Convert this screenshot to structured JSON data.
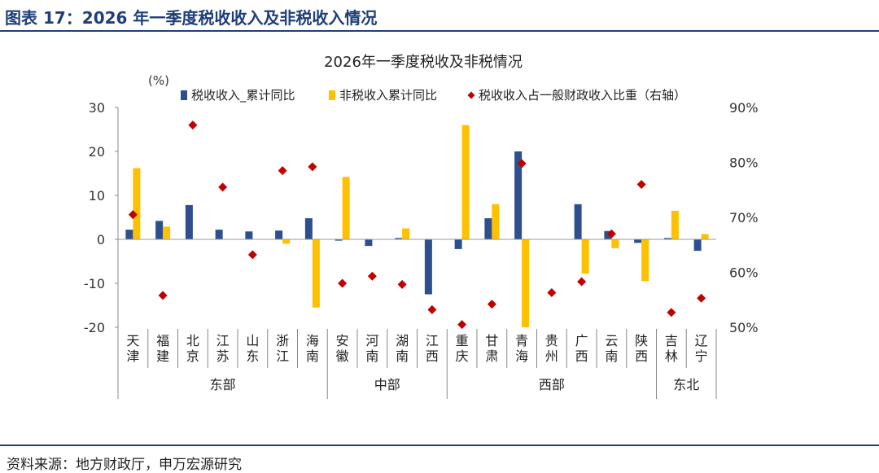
{
  "header": {
    "figure_title": "图表 17：2026 年一季度税收收入及非税收入情况"
  },
  "footer": {
    "source": "资料来源：地方财政厅，申万宏源研究"
  },
  "chart_data": {
    "type": "bar",
    "title": "2026年一季度税收及非税情况",
    "ylabel_left": "(%)",
    "y_left": {
      "min": -20,
      "max": 30,
      "ticks": [
        30,
        20,
        10,
        0,
        -10,
        -20
      ]
    },
    "y_right": {
      "min": 50,
      "max": 90,
      "ticks": [
        "90%",
        "80%",
        "70%",
        "60%",
        "50%"
      ],
      "tick_values": [
        90,
        80,
        70,
        60,
        50
      ]
    },
    "legend_position": "top",
    "categories": [
      "天津",
      "福建",
      "北京",
      "江苏",
      "山东",
      "浙江",
      "海南",
      "安徽",
      "河南",
      "湖南",
      "江西",
      "重庆",
      "甘肃",
      "青海",
      "贵州",
      "广西",
      "云南",
      "陕西",
      "吉林",
      "辽宁"
    ],
    "groups": [
      {
        "name": "东部",
        "start": 0,
        "end": 6
      },
      {
        "name": "中部",
        "start": 7,
        "end": 10
      },
      {
        "name": "西部",
        "start": 11,
        "end": 17
      },
      {
        "name": "东北",
        "start": 18,
        "end": 19
      }
    ],
    "series": [
      {
        "name": "税收收入_累计同比",
        "type": "bar",
        "axis": "left",
        "color": "#2d4f8e",
        "values": [
          2.2,
          4.2,
          7.8,
          2.2,
          1.8,
          2.0,
          4.8,
          -0.3,
          -1.5,
          0.3,
          -12.5,
          -2.2,
          4.8,
          20.0,
          0.0,
          8.0,
          1.9,
          -0.8,
          0.3,
          -2.6
        ]
      },
      {
        "name": "非税收入累计同比",
        "type": "bar",
        "axis": "left",
        "color": "#ffc000",
        "values": [
          16.2,
          2.9,
          0.0,
          0.0,
          0.0,
          -1.0,
          -15.5,
          14.2,
          0.0,
          2.5,
          0.0,
          26.0,
          8.0,
          -20.0,
          0.0,
          -7.8,
          -2.0,
          -9.5,
          6.5,
          1.2
        ]
      },
      {
        "name": "税收收入占一般财政收入比重（右轴）",
        "type": "scatter",
        "axis": "right",
        "color": "#c00000",
        "values": [
          70.5,
          55.8,
          86.8,
          75.5,
          63.2,
          78.5,
          79.2,
          58.0,
          59.3,
          57.8,
          53.2,
          50.5,
          54.2,
          79.8,
          56.3,
          58.3,
          67.0,
          76.0,
          52.7,
          55.3
        ]
      }
    ]
  }
}
